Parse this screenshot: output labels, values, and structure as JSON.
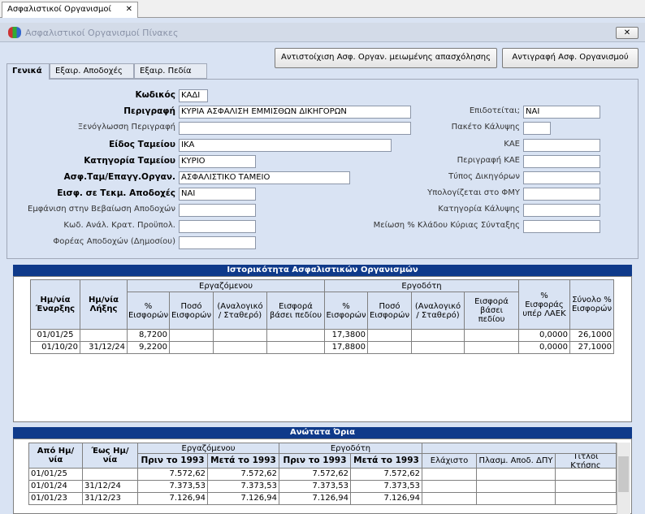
{
  "tab": "Ασφαλιστικοί Οργανισμοί",
  "window_title": "Ασφαλιστικοί Οργανισμοί Πίνακες",
  "buttons": [
    "Αντιστοίχιση Ασφ. Οργαν. μειωμένης απασχόλησης",
    "Αντιγραφή Ασφ. Οργανισμού"
  ],
  "subtabs": [
    "Γενικά",
    "Εξαιρ. Αποδοχές",
    "Εξαιρ. Πεδία"
  ],
  "left_fields": [
    {
      "label": "Κωδικός",
      "value": "ΚΑΔΙ",
      "bold": true
    },
    {
      "label": "Περιγραφή",
      "value": "ΚΥΡΙΑ ΑΣΦΑΛΙΣΗ ΕΜΜΙΣΘΩΝ ΔΙΚΗΓΟΡΩΝ",
      "bold": true
    },
    {
      "label": "Ξενόγλωσση Περιγραφή",
      "bold": false
    },
    {
      "label": "Είδος Ταμείου",
      "value": "ΙΚΑ",
      "bold": true
    },
    {
      "label": "Κατηγορία Ταμείου",
      "value": "ΚΥΡΙΟ",
      "bold": true
    },
    {
      "label": "Ασφ.Ταμ/Επαγγ.Οργαν.",
      "value": "ΑΣΦΑΛΙΣΤΙΚΟ ΤΑΜΕΙΟ",
      "bold": true
    },
    {
      "label": "Εισφ. σε Τεκμ. Αποδοχές",
      "value": "ΝΑΙ",
      "bold": true
    },
    {
      "label": "Εμφάνιση στην Βεβαίωση Αποδοχών",
      "bold": false
    },
    {
      "label": "Κωδ. Ανάλ. Κρατ. Προϋπολ.",
      "bold": false
    },
    {
      "label": "Φορέας Αποδοχών (Δημοσίου)",
      "bold": false
    }
  ],
  "right_fields": [
    {
      "label": "Επιδοτείται;",
      "value": "ΝΑΙ"
    },
    {
      "label": "Πακέτο Κάλυψης"
    },
    {
      "label": "ΚΑΕ"
    },
    {
      "label": "Περιγραφή ΚΑΕ"
    },
    {
      "label": "Τύπος Δικηγόρων"
    },
    {
      "label": "Υπολογίζεται στο ΦΜΥ"
    },
    {
      "label": "Κατηγορία Κάλυψης"
    },
    {
      "label": "Μείωση % Κλάδου Κύριας Σύνταξης"
    }
  ],
  "history": {
    "title": "Ιστορικότητα Ασφαλιστικών Οργανισμών",
    "groups": [
      "Εργαζόμενου",
      "Εργοδότη"
    ],
    "columns": [
      "Ημ/νία Έναρξης",
      "Ημ/νία Λήξης",
      "% Εισφορών",
      "Ποσό Εισφορών",
      "(Αναλογικό / Σταθερό)",
      "Εισφορά βάσει πεδίου",
      "% Εισφορών",
      "Ποσό Εισφορών",
      "(Αναλογικό / Σταθερό)",
      "Εισφορά βάσει πεδίου",
      "% Εισφοράς υπέρ ΛΑΕΚ",
      "Σύνολο % Εισφορών"
    ],
    "rows": [
      [
        "01/01/25",
        null,
        "8,7200",
        null,
        null,
        null,
        "17,3800",
        null,
        null,
        null,
        "0,0000",
        "26,1000"
      ],
      [
        "01/10/20",
        "31/12/24",
        "9,2200",
        null,
        null,
        null,
        "17,8800",
        null,
        null,
        null,
        "0,0000",
        "27,1000"
      ]
    ]
  },
  "limits": {
    "title": "Ανώτατα Όρια",
    "groups": [
      "Εργαζόμενου",
      "Εργοδότη"
    ],
    "columns": [
      "Από Ημ/νία",
      "Έως Ημ/νία",
      "Πριν το 1993",
      "Μετά το 1993",
      "Πριν το 1993",
      "Μετά το 1993",
      "Ελάχιστο",
      "Πλασμ. Αποδ. ΔΠΥ",
      "Τίτλοι Κτήσης"
    ],
    "rows": [
      [
        "01/01/25",
        null,
        "7.572,62",
        "7.572,62",
        "7.572,62",
        "7.572,62",
        null,
        null,
        null
      ],
      [
        "01/01/24",
        "31/12/24",
        "7.373,53",
        "7.373,53",
        "7.373,53",
        "7.373,53",
        null,
        null,
        null
      ],
      [
        "01/01/23",
        "31/12/23",
        "7.126,94",
        "7.126,94",
        "7.126,94",
        "7.126,94",
        null,
        null,
        null
      ]
    ]
  }
}
